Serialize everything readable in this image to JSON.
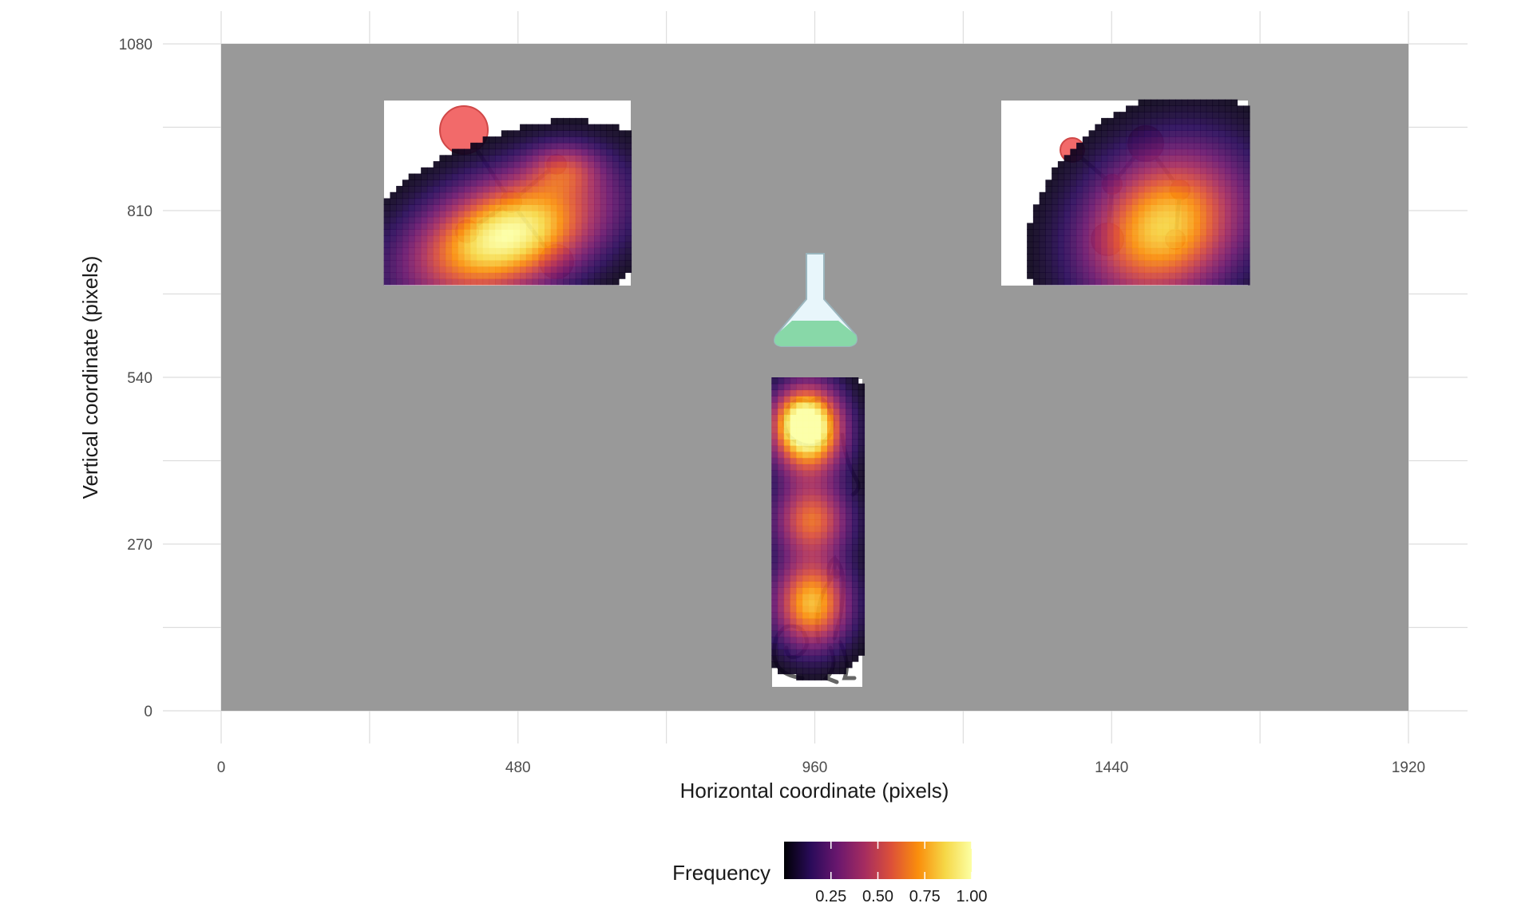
{
  "colors": {
    "panel_background": "#999999",
    "stimulus_background": "#ffffff",
    "grid": "#dddddd",
    "scale": [
      "#000004",
      "#2a0b5a",
      "#6a176e",
      "#a52c60",
      "#dc5039",
      "#fa8e0c",
      "#f6d746",
      "#fcffa4"
    ],
    "molecule_red": "#f26a6a",
    "flask_liquid": "#88d8a8",
    "flask_glass": "#e8f6fb",
    "drawing_grey": "#666666"
  },
  "chart_data": {
    "type": "heatmap",
    "title": "",
    "xlabel": "Horizontal coordinate (pixels)",
    "ylabel": "Vertical coordinate (pixels)",
    "xlim": [
      0,
      1920
    ],
    "ylim": [
      0,
      1080
    ],
    "x_ticks": [
      0,
      480,
      960,
      1440,
      1920
    ],
    "y_ticks": [
      0,
      270,
      540,
      810,
      1080
    ],
    "grid": true,
    "legend": {
      "title": "Frequency",
      "position": "bottom",
      "range": [
        0,
        1
      ],
      "ticks": [
        0.25,
        0.5,
        0.75,
        1.0
      ],
      "tick_labels": [
        "0.25",
        "0.50",
        "0.75",
        "1.00"
      ]
    },
    "screen_region": {
      "x": [
        0,
        1920
      ],
      "y": [
        0,
        1080
      ]
    },
    "stimuli": [
      {
        "name": "molecule-left",
        "x": [
          263,
          663
        ],
        "y": [
          690,
          990
        ]
      },
      {
        "name": "molecule-right",
        "x": [
          1263,
          1663
        ],
        "y": [
          690,
          990
        ]
      },
      {
        "name": "flask-and-creature",
        "x": [
          890,
          1040
        ],
        "y": [
          40,
          540
        ]
      }
    ],
    "hotspots": [
      {
        "region": "molecule-left",
        "x": 462,
        "y": 770,
        "sx": 105,
        "sy": 70,
        "rho": 0.4,
        "peak": 1.0
      },
      {
        "region": "molecule-left",
        "x": 555,
        "y": 880,
        "sx": 40,
        "sy": 28,
        "rho": 0,
        "peak": 0.3
      },
      {
        "region": "molecule-right",
        "x": 1525,
        "y": 785,
        "sx": 88,
        "sy": 85,
        "rho": 0.2,
        "peak": 0.85
      },
      {
        "region": "flask-and-creature",
        "x": 950,
        "y": 455,
        "sx": 40,
        "sy": 50,
        "rho": 0,
        "peak": 1.0
      },
      {
        "region": "flask-and-creature",
        "x": 955,
        "y": 310,
        "sx": 42,
        "sy": 40,
        "rho": 0,
        "peak": 0.6
      },
      {
        "region": "flask-and-creature",
        "x": 955,
        "y": 175,
        "sx": 42,
        "sy": 50,
        "rho": 0,
        "peak": 0.8
      },
      {
        "region": "flask-and-creature",
        "x": 935,
        "y": 470,
        "sx": 30,
        "sy": 30,
        "rho": 0,
        "peak": 0.3
      },
      {
        "region": "flask-and-creature",
        "x": 958,
        "y": 610,
        "sx": 22,
        "sy": 22,
        "rho": 0,
        "peak": 0.22
      },
      {
        "region": "flask-and-creature",
        "x": 960,
        "y": 775,
        "sx": 20,
        "sy": 18,
        "rho": 0,
        "peak": 0.15
      }
    ],
    "display_threshold": 0.035
  }
}
